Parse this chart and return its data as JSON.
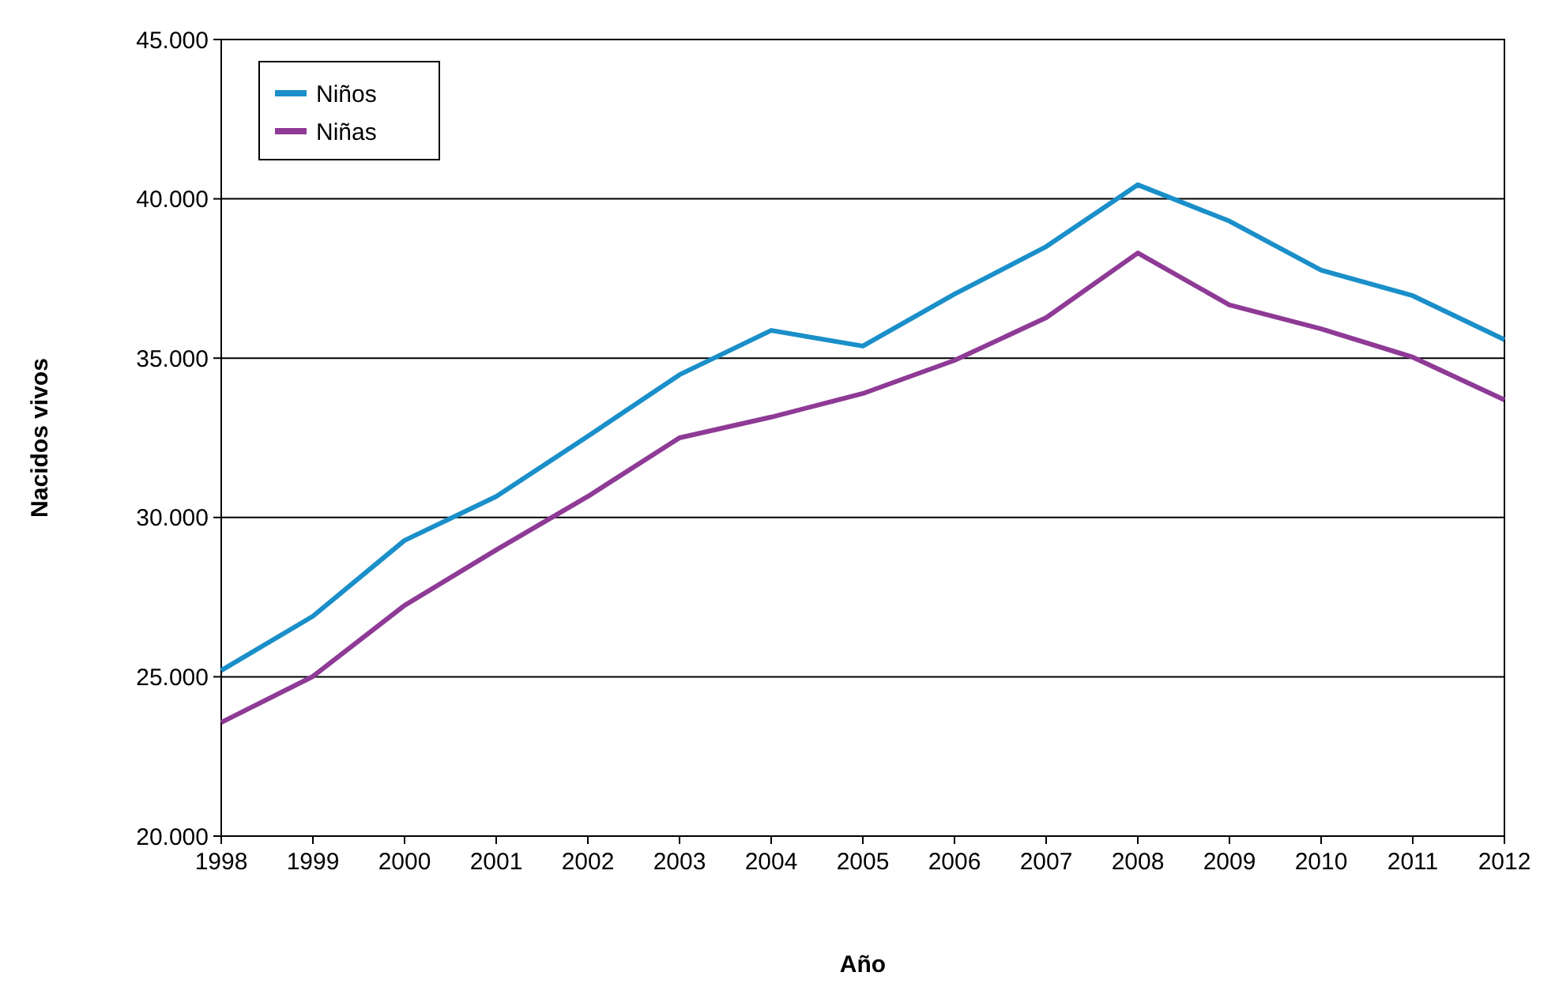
{
  "chart_data": {
    "type": "line",
    "xlabel": "Año",
    "ylabel": "Nacidos vivos",
    "x": [
      1998,
      1999,
      2000,
      2001,
      2002,
      2003,
      2004,
      2005,
      2006,
      2007,
      2008,
      2009,
      2010,
      2011,
      2012
    ],
    "series": [
      {
        "name": "Niños",
        "color": "#1a8fc9",
        "values": [
          25200,
          26900,
          29280,
          30660,
          32550,
          34480,
          35870,
          35380,
          37010,
          38500,
          40440,
          39300,
          37760,
          36960,
          35580
        ]
      },
      {
        "name": "Niñas",
        "color": "#8e3a96",
        "values": [
          23570,
          25010,
          27240,
          28980,
          30660,
          32500,
          33150,
          33890,
          34930,
          36270,
          38300,
          36670,
          35920,
          35030,
          33690
        ]
      }
    ],
    "xlim": [
      1998,
      2012
    ],
    "xticks": [
      1998,
      1999,
      2000,
      2001,
      2002,
      2003,
      2004,
      2005,
      2006,
      2007,
      2008,
      2009,
      2010,
      2011,
      2012
    ],
    "ylim": [
      20000,
      45000
    ],
    "yticks": [
      {
        "value": 20000,
        "label": "20.000"
      },
      {
        "value": 25000,
        "label": "25.000"
      },
      {
        "value": 30000,
        "label": "30.000"
      },
      {
        "value": 35000,
        "label": "35.000"
      },
      {
        "value": 40000,
        "label": "40.000"
      },
      {
        "value": 45000,
        "label": "45.000"
      }
    ],
    "grid": "y",
    "legend": "top left",
    "marker": "none",
    "line_style": "solid"
  }
}
